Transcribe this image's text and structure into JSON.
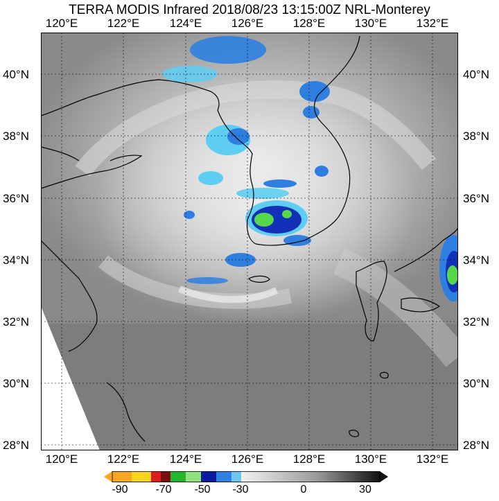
{
  "title": "TERRA MODIS Infrared 2018/08/23 13:15:00Z NRL-Monterey",
  "lon_labels": [
    "120°E",
    "122°E",
    "124°E",
    "126°E",
    "128°E",
    "130°E",
    "132°E"
  ],
  "lat_labels": [
    "40°N",
    "38°N",
    "36°N",
    "34°N",
    "32°N",
    "30°N",
    "28°N"
  ],
  "colorbar": {
    "tick_labels": [
      "-90",
      "-70",
      "-50",
      "-30",
      "0",
      "30"
    ],
    "colors": [
      "#f5a623",
      "#f8d21c",
      "#d81e1e",
      "#7a0f0f",
      "#27b52b",
      "#8fe37e",
      "#0a1aa0",
      "#2f80e0",
      "#69c9f0",
      "#f2f2f2",
      "#9a9a9a",
      "#111111"
    ]
  },
  "map_colors": {
    "cloud_blue": "#2e7fe0",
    "cloud_cyan": "#5ecdf2",
    "cloud_deep": "#1230b8",
    "cloud_green": "#56d84a",
    "background_gray": "#8a8a8a",
    "coastline": "#000000"
  }
}
